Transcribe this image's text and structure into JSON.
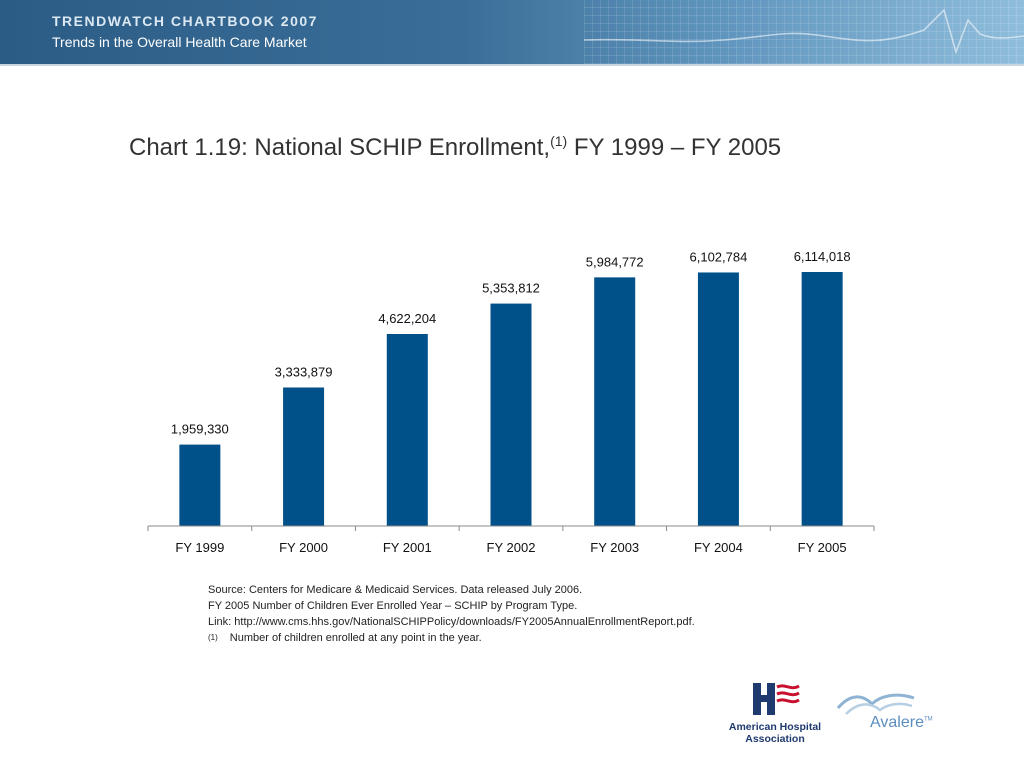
{
  "banner": {
    "title": "TRENDWATCH CHARTBOOK 2007",
    "subtitle": "Trends in the Overall Health Care Market"
  },
  "title": {
    "main": "Chart 1.19: National SCHIP Enrollment,",
    "superscript": "(1)",
    "suffix": " FY 1999 – FY 2005"
  },
  "chart_data": {
    "type": "bar",
    "title": "Chart 1.19: National SCHIP Enrollment, (1) FY 1999 – FY 2005",
    "categories": [
      "FY 1999",
      "FY 2000",
      "FY 2001",
      "FY 2002",
      "FY 2003",
      "FY 2004",
      "FY 2005"
    ],
    "values": [
      1959330,
      3333879,
      4622204,
      5353812,
      5984772,
      6102784,
      6114018
    ],
    "value_labels": [
      "1,959,330",
      "3,333,879",
      "4,622,204",
      "5,353,812",
      "5,984,772",
      "6,102,784",
      "6,114,018"
    ],
    "color": "#00508a",
    "xlabel": "",
    "ylabel": "",
    "ylim": [
      0,
      6114018
    ],
    "grid": false,
    "legend": "none"
  },
  "notes": {
    "line1": "Source: Centers for Medicare & Medicaid Services. Data released July 2006.",
    "line2": "FY 2005 Number of Children Ever Enrolled Year – SCHIP by Program Type.",
    "line3": "Link: http://www.cms.hhs.gov/NationalSCHIPPolicy/downloads/FY2005AnnualEnrollmentReport.pdf.",
    "footnote_marker": "(1)",
    "footnote_text": "Number of children enrolled at any point in the year."
  },
  "logos": {
    "aha_line1": "American Hospital",
    "aha_line2": "Association",
    "avalere_name": "Avalere",
    "avalere_tm": "TM"
  }
}
